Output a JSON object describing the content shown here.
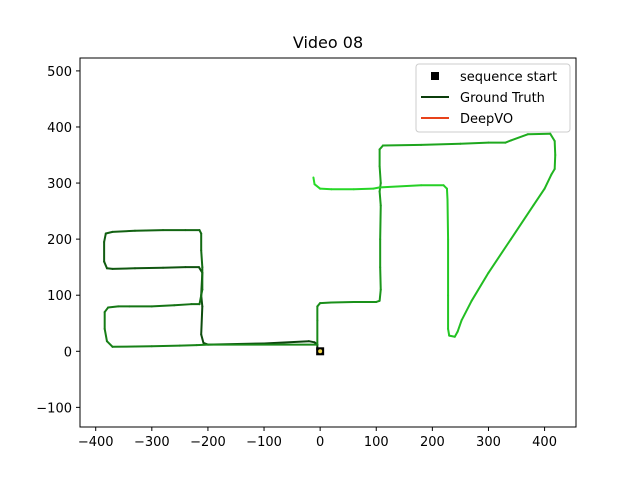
{
  "chart_data": {
    "type": "line",
    "title": "Video 08",
    "xlabel": "",
    "ylabel": "",
    "xlim": [
      -428,
      456
    ],
    "ylim": [
      -135,
      523
    ],
    "x_ticks": [
      -400,
      -300,
      -200,
      -100,
      0,
      100,
      200,
      300,
      400
    ],
    "y_ticks": [
      -100,
      0,
      100,
      200,
      300,
      400,
      500
    ],
    "x_tick_labels": [
      "−400",
      "−300",
      "−200",
      "−100",
      "0",
      "100",
      "200",
      "300",
      "400"
    ],
    "y_tick_labels": [
      "−100",
      "0",
      "100",
      "200",
      "300",
      "400",
      "500"
    ],
    "grid": false,
    "legend_position": "top-right",
    "legend": [
      {
        "label": "sequence start",
        "marker": "square",
        "color": "#000000"
      },
      {
        "label": "Ground Truth",
        "marker": "line",
        "color": "#0b3d0b"
      },
      {
        "label": "DeepVO",
        "marker": "line",
        "color": "#e8421a"
      }
    ],
    "sequence_start": {
      "x": 0,
      "y": 0
    },
    "series": [
      {
        "name": "Ground Truth",
        "points": [
          [
            0,
            0
          ],
          [
            -3,
            0
          ],
          [
            -5,
            3
          ],
          [
            -5,
            12
          ],
          [
            -10,
            16
          ],
          [
            -20,
            18
          ],
          [
            -100,
            14
          ],
          [
            -200,
            12
          ],
          [
            -208,
            15
          ],
          [
            -212,
            30
          ],
          [
            -210,
            80
          ],
          [
            -212,
            100
          ],
          [
            -210,
            140
          ],
          [
            -216,
            150
          ],
          [
            -240,
            150
          ],
          [
            -280,
            149
          ],
          [
            -330,
            148
          ],
          [
            -370,
            147
          ],
          [
            -380,
            148
          ],
          [
            -385,
            160
          ],
          [
            -385,
            195
          ],
          [
            -382,
            210
          ],
          [
            -370,
            213
          ],
          [
            -330,
            215
          ],
          [
            -280,
            216
          ],
          [
            -240,
            216
          ],
          [
            -215,
            216
          ],
          [
            -212,
            210
          ],
          [
            -212,
            180
          ],
          [
            -210,
            150
          ],
          [
            -210,
            110
          ],
          [
            -215,
            84
          ],
          [
            -230,
            84
          ],
          [
            -260,
            82
          ],
          [
            -300,
            80
          ],
          [
            -340,
            80
          ],
          [
            -360,
            80
          ],
          [
            -378,
            78
          ],
          [
            -384,
            70
          ],
          [
            -384,
            40
          ],
          [
            -380,
            18
          ],
          [
            -370,
            8
          ],
          [
            -300,
            9
          ],
          [
            -250,
            10
          ],
          [
            -220,
            11
          ],
          [
            -200,
            12
          ]
        ]
      },
      {
        "name": "DeepVO",
        "points": [
          [
            -5,
            12
          ],
          [
            -5,
            55
          ],
          [
            -5,
            80
          ],
          [
            0,
            86
          ],
          [
            20,
            87
          ],
          [
            60,
            88
          ],
          [
            100,
            88
          ],
          [
            106,
            90
          ],
          [
            108,
            110
          ],
          [
            107,
            150
          ],
          [
            107,
            200
          ],
          [
            108,
            260
          ],
          [
            106,
            285
          ],
          [
            108,
            300
          ],
          [
            106,
            330
          ],
          [
            106,
            360
          ],
          [
            112,
            367
          ],
          [
            180,
            368
          ],
          [
            250,
            370
          ],
          [
            300,
            372
          ],
          [
            330,
            372
          ],
          [
            340,
            376
          ],
          [
            370,
            387
          ],
          [
            410,
            388
          ],
          [
            418,
            375
          ],
          [
            419,
            350
          ],
          [
            418,
            325
          ],
          [
            412,
            315
          ],
          [
            400,
            290
          ],
          [
            380,
            260
          ],
          [
            340,
            200
          ],
          [
            300,
            140
          ],
          [
            270,
            90
          ],
          [
            252,
            55
          ],
          [
            245,
            35
          ],
          [
            240,
            26
          ],
          [
            230,
            28
          ],
          [
            228,
            40
          ],
          [
            228,
            100
          ],
          [
            228,
            200
          ],
          [
            227,
            270
          ],
          [
            226,
            290
          ],
          [
            220,
            296
          ],
          [
            180,
            296
          ],
          [
            120,
            293
          ],
          [
            105,
            292
          ],
          [
            95,
            290
          ],
          [
            60,
            289
          ],
          [
            20,
            289
          ],
          [
            0,
            290
          ],
          [
            -10,
            298
          ],
          [
            -12,
            310
          ]
        ]
      }
    ]
  }
}
